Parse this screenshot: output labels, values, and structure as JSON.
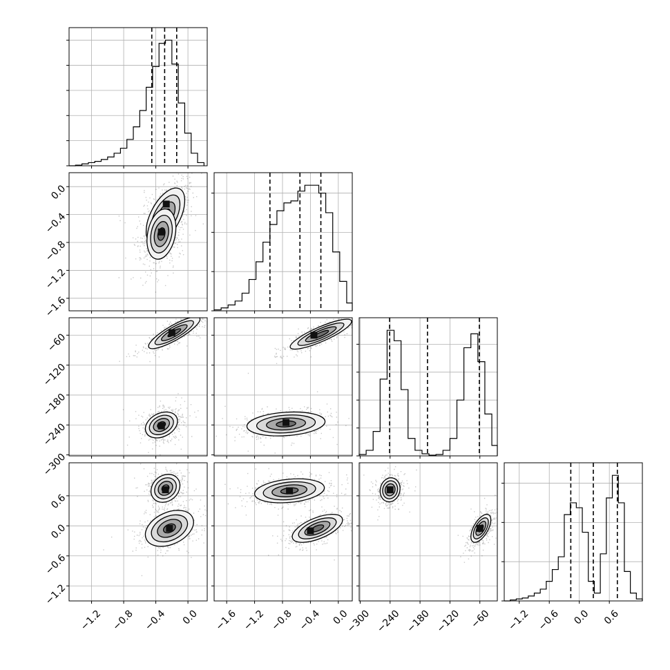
{
  "chart_data": {
    "type": "corner",
    "grid": true,
    "parameters": [
      {
        "xlim": [
          -1.48,
          0.24
        ],
        "ticks": [
          -1.2,
          -0.8,
          -0.4,
          0.0
        ],
        "tick_labels": [
          "−1.2",
          "−0.8",
          "−0.4",
          "0.0"
        ],
        "quantiles": [
          -0.45,
          -0.29,
          -0.14
        ],
        "histogram": {
          "bin_edges": [
            -1.48,
            -1.4,
            -1.32,
            -1.24,
            -1.16,
            -1.08,
            -1.0,
            -0.92,
            -0.84,
            -0.76,
            -0.68,
            -0.6,
            -0.52,
            -0.44,
            -0.36,
            -0.28,
            -0.2,
            -0.12,
            -0.04,
            0.04,
            0.12,
            0.2
          ],
          "counts": [
            0,
            1,
            3,
            5,
            7,
            10,
            14,
            20,
            28,
            42,
            62,
            88,
            125,
            158,
            195,
            200,
            162,
            100,
            52,
            20,
            5
          ]
        }
      },
      {
        "xlim": [
          -1.78,
          0.2
        ],
        "ticks": [
          -1.6,
          -1.2,
          -0.8,
          -0.4,
          0.0
        ],
        "tick_labels": [
          "−1.6",
          "−1.2",
          "−0.8",
          "−0.4",
          "0.0"
        ],
        "quantiles": [
          -0.98,
          -0.55,
          -0.25
        ],
        "histogram": {
          "bin_edges": [
            -1.78,
            -1.68,
            -1.58,
            -1.48,
            -1.38,
            -1.28,
            -1.18,
            -1.08,
            -0.98,
            -0.88,
            -0.78,
            -0.68,
            -0.58,
            -0.48,
            -0.38,
            -0.28,
            -0.18,
            -0.08,
            0.02,
            0.12,
            0.2
          ],
          "counts": [
            1,
            3,
            6,
            10,
            18,
            32,
            50,
            70,
            88,
            102,
            110,
            112,
            122,
            128,
            128,
            120,
            100,
            60,
            30,
            8
          ]
        }
      },
      {
        "xlim": [
          -302,
          -25
        ],
        "ticks": [
          -300,
          -240,
          -180,
          -120,
          -60
        ],
        "tick_labels": [
          "−300",
          "−240",
          "−180",
          "−120",
          "−60"
        ],
        "quantiles": [
          -241,
          -165,
          -61
        ],
        "histogram": {
          "bin_edges": [
            -302,
            -288,
            -274,
            -260,
            -246,
            -232,
            -218,
            -204,
            -190,
            -176,
            -162,
            -148,
            -134,
            -120,
            -106,
            -92,
            -78,
            -64,
            -50,
            -36,
            -25
          ],
          "counts": [
            2,
            8,
            35,
            110,
            180,
            165,
            95,
            25,
            8,
            3,
            1,
            2,
            8,
            25,
            80,
            155,
            175,
            135,
            60,
            15
          ]
        }
      },
      {
        "xlim": [
          -1.5,
          1.26
        ],
        "ticks": [
          -1.2,
          -0.6,
          0.0,
          0.6
        ],
        "tick_labels": [
          "−1.2",
          "−0.6",
          "0.0",
          "0.6"
        ],
        "quantiles": [
          -0.17,
          0.28,
          0.76
        ],
        "histogram": {
          "bin_edges": [
            -1.5,
            -1.38,
            -1.26,
            -1.14,
            -1.02,
            -0.9,
            -0.78,
            -0.66,
            -0.54,
            -0.42,
            -0.3,
            -0.18,
            -0.06,
            0.06,
            0.18,
            0.3,
            0.42,
            0.54,
            0.66,
            0.78,
            0.9,
            1.02,
            1.14,
            1.26
          ],
          "counts": [
            0,
            1,
            2,
            3,
            5,
            8,
            12,
            20,
            32,
            45,
            88,
            100,
            95,
            70,
            20,
            8,
            48,
            105,
            128,
            100,
            30,
            8,
            2
          ]
        }
      }
    ],
    "modes": [
      [
        {
          "mean": [
            -0.28,
            -0.42
          ],
          "sd": [
            0.12,
            0.2
          ],
          "corr": 0.55,
          "peak": [
            -0.27,
            -0.25
          ]
        },
        {
          "mean": [
            -0.33,
            -0.68
          ],
          "sd": [
            0.09,
            0.18
          ],
          "corr": 0.25,
          "peak": [
            -0.33,
            -0.65
          ]
        }
      ],
      [
        {
          "mean": [
            -0.17,
            -55
          ],
          "sd": [
            0.16,
            16
          ],
          "corr": 0.85,
          "peak": [
            -0.2,
            -55
          ]
        },
        {
          "mean": [
            -0.33,
            -240
          ],
          "sd": [
            0.1,
            13
          ],
          "corr": 0.3,
          "peak": [
            -0.33,
            -242
          ]
        }
      ],
      [
        {
          "mean": [
            -0.25,
            -58
          ],
          "sd": [
            0.22,
            15
          ],
          "corr": 0.85,
          "peak": [
            -0.35,
            -60
          ]
        },
        {
          "mean": [
            -0.75,
            -238
          ],
          "sd": [
            0.28,
            12
          ],
          "corr": 0.2,
          "peak": [
            -0.75,
            -235
          ]
        }
      ],
      [
        {
          "mean": [
            -0.28,
            0.75
          ],
          "sd": [
            0.09,
            0.14
          ],
          "corr": 0.2,
          "peak": [
            -0.28,
            0.72
          ]
        },
        {
          "mean": [
            -0.23,
            -0.05
          ],
          "sd": [
            0.15,
            0.18
          ],
          "corr": 0.35,
          "peak": [
            -0.23,
            -0.05
          ]
        }
      ],
      [
        {
          "mean": [
            -0.7,
            0.7
          ],
          "sd": [
            0.25,
            0.12
          ],
          "corr": 0.25,
          "peak": [
            -0.7,
            0.7
          ]
        },
        {
          "mean": [
            -0.3,
            -0.05
          ],
          "sd": [
            0.18,
            0.14
          ],
          "corr": 0.6,
          "peak": [
            -0.4,
            -0.1
          ]
        }
      ],
      [
        {
          "mean": [
            -240,
            0.72
          ],
          "sd": [
            10,
            0.12
          ],
          "corr": 0.1,
          "peak": [
            -240,
            0.72
          ]
        },
        {
          "mean": [
            -58,
            -0.05
          ],
          "sd": [
            10,
            0.14
          ],
          "corr": 0.6,
          "peak": [
            -60,
            -0.05
          ]
        }
      ]
    ]
  }
}
